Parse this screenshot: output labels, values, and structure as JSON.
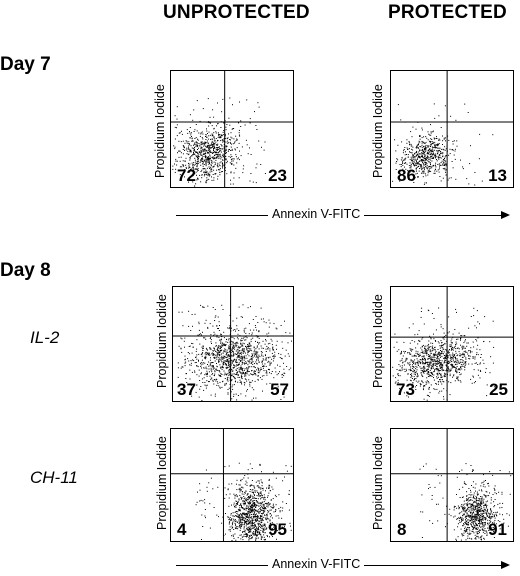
{
  "headers": {
    "unprotected": "UNPROTECTED",
    "protected": "PROTECTED"
  },
  "days": {
    "day7": "Day 7",
    "day8": "Day 8"
  },
  "conditions": {
    "il2": "IL-2",
    "ch11": "CH-11"
  },
  "axes": {
    "y": "Propidium Iodide",
    "x": "Annexin V-FITC"
  },
  "chart_data": [
    {
      "type": "scatter",
      "group": "Day 7",
      "condition": "",
      "column": "UNPROTECTED",
      "ylabel": "Propidium Iodide",
      "quadrant_labels": {
        "lower_left": "72",
        "lower_right": "23"
      }
    },
    {
      "type": "scatter",
      "group": "Day 7",
      "condition": "",
      "column": "PROTECTED",
      "ylabel": "Propidium Iodide",
      "quadrant_labels": {
        "lower_left": "86",
        "lower_right": "13"
      }
    },
    {
      "type": "scatter",
      "group": "Day 8",
      "condition": "IL-2",
      "column": "UNPROTECTED",
      "ylabel": "Propidium Iodide",
      "quadrant_labels": {
        "lower_left": "37",
        "lower_right": "57"
      }
    },
    {
      "type": "scatter",
      "group": "Day 8",
      "condition": "IL-2",
      "column": "PROTECTED",
      "ylabel": "Propidium Iodide",
      "quadrant_labels": {
        "lower_left": "73",
        "lower_right": "25"
      }
    },
    {
      "type": "scatter",
      "group": "Day 8",
      "condition": "CH-11",
      "column": "UNPROTECTED",
      "ylabel": "Propidium Iodide",
      "quadrant_labels": {
        "lower_left": "4",
        "lower_right": "95"
      }
    },
    {
      "type": "scatter",
      "group": "Day 8",
      "condition": "CH-11",
      "column": "PROTECTED",
      "ylabel": "Propidium Iodide",
      "quadrant_labels": {
        "lower_left": "8",
        "lower_right": "91"
      }
    }
  ]
}
